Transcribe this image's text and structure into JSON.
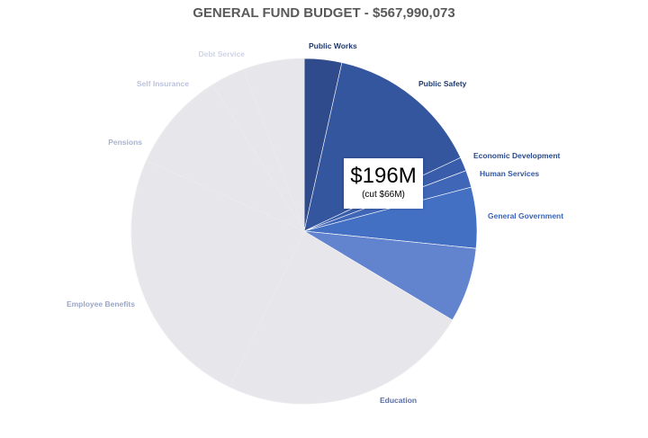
{
  "chart_data": {
    "type": "pie",
    "title": "GENERAL FUND BUDGET - $567,990,073",
    "slices": [
      {
        "label": "Public Works",
        "value": 3.5,
        "color": "#2f4b8c",
        "label_color": "#1f3a6e",
        "highlighted": true
      },
      {
        "label": "Public Safety",
        "value": 14.5,
        "color": "#34569f",
        "label_color": "#1f3a6e",
        "highlighted": true
      },
      {
        "label": "Economic Development",
        "value": 1.3,
        "color": "#3a5dab",
        "label_color": "#2a4a8a",
        "highlighted": true
      },
      {
        "label": "Human Services",
        "value": 1.6,
        "color": "#4066b7",
        "label_color": "#2f55a4",
        "highlighted": true
      },
      {
        "label": "General Government",
        "value": 5.7,
        "color": "#4470c4",
        "label_color": "#3a63b8",
        "highlighted": true
      },
      {
        "label": "Education",
        "value": 30.5,
        "color": "#e7e6ea",
        "label_color": "#5a6ea8",
        "highlighted": false
      },
      {
        "label": "Employee Benefits",
        "value": 24.6,
        "color": "#e7e6ea",
        "label_color": "#9aa6c7",
        "highlighted": false
      },
      {
        "label": "Pensions",
        "value": 9.4,
        "color": "#e7e6ea",
        "label_color": "#aab3d0",
        "highlighted": false
      },
      {
        "label": "Self Insurance",
        "value": 3.2,
        "color": "#e7e6ea",
        "label_color": "#bcc3db",
        "highlighted": false
      },
      {
        "label": "Debt Service",
        "value": 5.7,
        "color": "#e7e6ea",
        "label_color": "#cfd4e6",
        "highlighted": false
      }
    ],
    "education_highlight_color": "#6283cd",
    "education_highlight_share": 7.0,
    "start_angle_deg": 0,
    "direction": "clockwise"
  },
  "callout": {
    "amount": "$196M",
    "note": "(cut $66M)"
  }
}
